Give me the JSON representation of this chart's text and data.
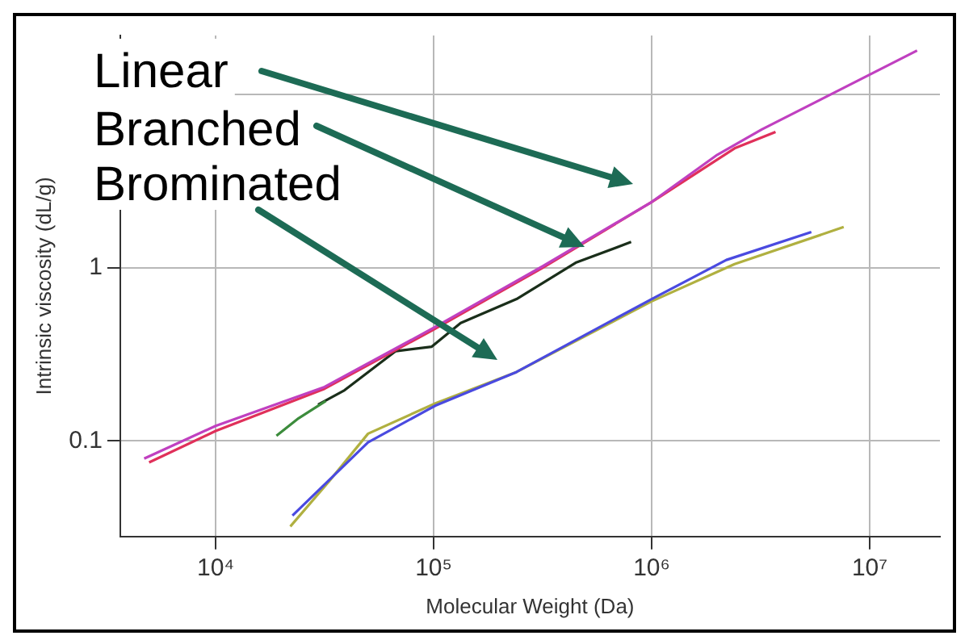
{
  "chart_data": {
    "type": "line",
    "xlabel": "Molecular Weight (Da)",
    "ylabel": "Intrinsic viscosity (dL/g)",
    "log": "xy",
    "grid": true,
    "legend": false,
    "marker": "none",
    "line_style": "solid",
    "xlim": [
      3650,
      21000000
    ],
    "xticks": [
      {
        "value": 10000,
        "label": "10⁴"
      },
      {
        "value": 100000,
        "label": "10⁵"
      },
      {
        "value": 1000000,
        "label": "10⁶"
      },
      {
        "value": 10000000,
        "label": "10⁷"
      }
    ],
    "ylim": [
      0.028,
      22
    ],
    "yticks": [
      0.1,
      1,
      {
        "value": 10,
        "label": null
      }
    ],
    "series": [
      {
        "color": "#c040c0",
        "x": [
          4700,
          10000,
          31600,
          100000,
          316000,
          1000000,
          2000000,
          3200000,
          16500000
        ],
        "values": [
          0.079,
          0.122,
          0.205,
          0.45,
          1.02,
          2.4,
          4.5,
          6.3,
          18
        ]
      },
      {
        "color": "#e0305a",
        "x": [
          4950,
          10000,
          31600,
          100000,
          316000,
          1000000,
          2400000,
          3700000
        ],
        "values": [
          0.075,
          0.114,
          0.2,
          0.44,
          1.0,
          2.4,
          4.9,
          6.1
        ]
      },
      {
        "color": "#3c8c3c",
        "x": [
          19000,
          24000,
          32000
        ],
        "values": [
          0.107,
          0.135,
          0.17
        ]
      },
      {
        "color": "#1a2e1a",
        "x": [
          29500,
          39000,
          67000,
          98000,
          133000,
          240000,
          448000,
          805000
        ],
        "values": [
          0.162,
          0.196,
          0.33,
          0.35,
          0.48,
          0.66,
          1.07,
          1.41
        ]
      },
      {
        "color": "#4a4ae0",
        "x": [
          22500,
          33000,
          50000,
          102000,
          240000,
          1000000,
          2200000,
          5400000
        ],
        "values": [
          0.037,
          0.059,
          0.098,
          0.16,
          0.25,
          0.66,
          1.11,
          1.61
        ]
      },
      {
        "color": "#b0b040",
        "x": [
          22000,
          33000,
          50000,
          102000,
          240000,
          1000000,
          2400000,
          7600000
        ],
        "values": [
          0.032,
          0.058,
          0.11,
          0.165,
          0.25,
          0.64,
          1.05,
          1.72
        ]
      }
    ],
    "annotations": [
      "Linear",
      "Branched",
      "Brominated"
    ]
  }
}
